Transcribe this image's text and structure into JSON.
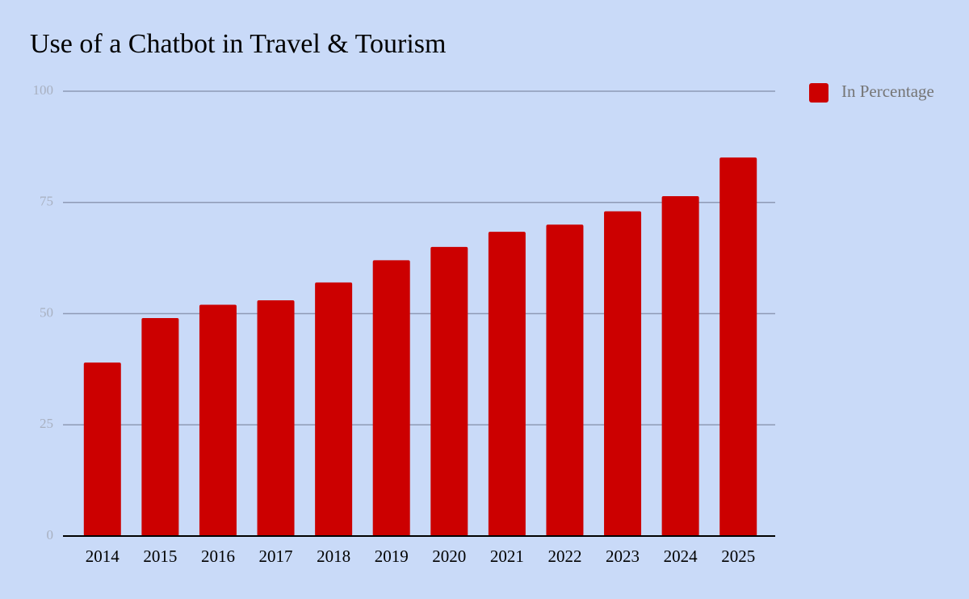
{
  "chart_data": {
    "type": "bar",
    "title": "Use of a Chatbot in Travel & Tourism",
    "categories": [
      "2014",
      "2015",
      "2016",
      "2017",
      "2018",
      "2019",
      "2020",
      "2021",
      "2022",
      "2023",
      "2024",
      "2025"
    ],
    "series": [
      {
        "name": "In Percentage",
        "color": "#cc0000",
        "values": [
          39,
          49,
          52,
          53,
          57,
          62,
          65,
          68.4,
          70,
          73,
          76.4,
          85.1
        ]
      }
    ],
    "ylim": [
      0,
      100
    ],
    "yticks": [
      0,
      25,
      50,
      75,
      100
    ],
    "grid": true,
    "legend": "right"
  }
}
